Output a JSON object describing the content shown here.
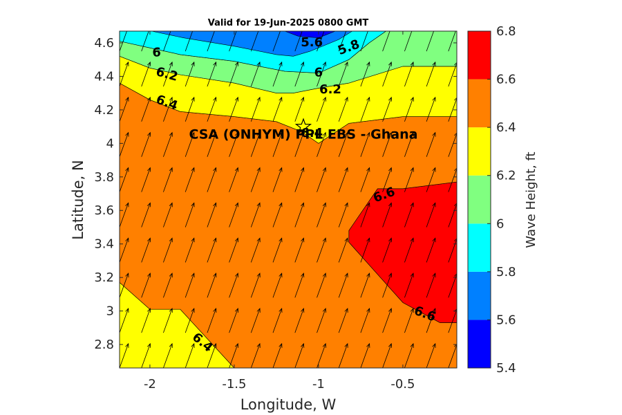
{
  "chart_data": {
    "type": "heatmap",
    "title": "Valid for 19-Jun-2025 0800 GMT",
    "xlabel": "Longitude, W",
    "ylabel": "Latitude, N",
    "colorbar_label": "Wave Height, ft",
    "xlim": [
      -2.18,
      -0.18
    ],
    "ylim": [
      2.66,
      4.67
    ],
    "xticks": [
      -2,
      -1.5,
      -1,
      -0.5
    ],
    "xtick_labels": [
      "-2",
      "-1.5",
      "-1",
      "-0.5"
    ],
    "yticks": [
      2.8,
      3,
      3.2,
      3.4,
      3.6,
      3.8,
      4,
      4.2,
      4.4,
      4.6
    ],
    "ytick_labels": [
      "2.8",
      "3",
      "3.2",
      "3.4",
      "3.6",
      "3.8",
      "4",
      "4.2",
      "4.4",
      "4.6"
    ],
    "levels": [
      5.4,
      5.6,
      5.8,
      6,
      6.2,
      6.4,
      6.6,
      6.8
    ],
    "level_labels": [
      "5.4",
      "5.6",
      "5.8",
      "6",
      "6.2",
      "6.4",
      "6.6",
      "6.8"
    ],
    "level_colors": [
      "#0000ff",
      "#0080ff",
      "#00ffff",
      "#80ff80",
      "#ffff00",
      "#ff8000",
      "#ff0000"
    ],
    "regions": [
      {
        "level": "6.2-6.4",
        "points": [
          [
            -2.18,
            2.66
          ],
          [
            -2.18,
            3.17
          ],
          [
            -2,
            3.01
          ],
          [
            -1.82,
            3.01
          ],
          [
            -1.5,
            2.66
          ]
        ]
      },
      {
        "level": "6.6-6.8",
        "points": [
          [
            -0.18,
            3.77
          ],
          [
            -0.5,
            3.73
          ],
          [
            -0.65,
            3.73
          ],
          [
            -0.82,
            3.48
          ],
          [
            -0.82,
            3.41
          ],
          [
            -0.5,
            3.05
          ],
          [
            -0.28,
            2.93
          ],
          [
            -0.18,
            2.93
          ]
        ]
      },
      {
        "level": "6.4-6.6",
        "points": [
          [
            -2.18,
            3.17
          ],
          [
            -2,
            3.01
          ],
          [
            -1.82,
            3.01
          ],
          [
            -1.5,
            2.66
          ],
          [
            -0.18,
            2.66
          ],
          [
            -0.18,
            2.93
          ],
          [
            -0.28,
            2.93
          ],
          [
            -0.5,
            3.05
          ],
          [
            -0.82,
            3.41
          ],
          [
            -0.82,
            3.48
          ],
          [
            -0.65,
            3.73
          ],
          [
            -0.5,
            3.73
          ],
          [
            -0.18,
            3.77
          ],
          [
            -0.18,
            4.16
          ],
          [
            -0.5,
            4.16
          ],
          [
            -0.82,
            4.12
          ],
          [
            -1,
            4
          ],
          [
            -1.1,
            4.07
          ],
          [
            -1.25,
            4.13
          ],
          [
            -1.5,
            4.16
          ],
          [
            -1.82,
            4.19
          ],
          [
            -2,
            4.26
          ],
          [
            -2.18,
            4.36
          ]
        ]
      },
      {
        "level": "6.2-6.4",
        "points": [
          [
            -2.18,
            4.36
          ],
          [
            -2,
            4.26
          ],
          [
            -1.82,
            4.19
          ],
          [
            -1.5,
            4.16
          ],
          [
            -1.25,
            4.13
          ],
          [
            -1.1,
            4.07
          ],
          [
            -1,
            4
          ],
          [
            -0.82,
            4.12
          ],
          [
            -0.5,
            4.16
          ],
          [
            -0.18,
            4.16
          ],
          [
            -0.18,
            4.46
          ],
          [
            -0.5,
            4.46
          ],
          [
            -0.82,
            4.36
          ],
          [
            -1,
            4.33
          ],
          [
            -1.15,
            4.3
          ],
          [
            -1.25,
            4.3
          ],
          [
            -1.5,
            4.36
          ],
          [
            -1.82,
            4.41
          ],
          [
            -2,
            4.45
          ],
          [
            -2.18,
            4.52
          ]
        ]
      },
      {
        "level": "6.0-6.2",
        "points": [
          [
            -2.18,
            4.52
          ],
          [
            -2,
            4.45
          ],
          [
            -1.82,
            4.41
          ],
          [
            -1.5,
            4.36
          ],
          [
            -1.25,
            4.3
          ],
          [
            -1.15,
            4.3
          ],
          [
            -1,
            4.33
          ],
          [
            -0.82,
            4.36
          ],
          [
            -0.5,
            4.46
          ],
          [
            -0.18,
            4.46
          ],
          [
            -0.18,
            4.67
          ],
          [
            -0.6,
            4.67
          ],
          [
            -0.7,
            4.6
          ],
          [
            -0.82,
            4.5
          ],
          [
            -1,
            4.42
          ],
          [
            -1.2,
            4.43
          ],
          [
            -1.5,
            4.49
          ],
          [
            -1.82,
            4.53
          ],
          [
            -2,
            4.57
          ],
          [
            -2.18,
            4.61
          ]
        ]
      },
      {
        "level": "5.8-6.0",
        "points": [
          [
            -2.18,
            4.61
          ],
          [
            -2,
            4.57
          ],
          [
            -1.82,
            4.53
          ],
          [
            -1.5,
            4.49
          ],
          [
            -1.2,
            4.43
          ],
          [
            -1,
            4.42
          ],
          [
            -0.82,
            4.5
          ],
          [
            -0.7,
            4.6
          ],
          [
            -0.6,
            4.67
          ],
          [
            -2.18,
            4.67
          ]
        ]
      },
      {
        "level": "5.6-5.8",
        "points": [
          [
            -1.99,
            4.67
          ],
          [
            -1.8,
            4.63
          ],
          [
            -1.5,
            4.58
          ],
          [
            -1.25,
            4.53
          ],
          [
            -1.15,
            4.52
          ],
          [
            -1.05,
            4.55
          ],
          [
            -0.88,
            4.62
          ],
          [
            -0.8,
            4.67
          ]
        ]
      },
      {
        "level": "5.4-5.6",
        "points": [
          [
            -1.2,
            4.67
          ],
          [
            -1.12,
            4.64
          ],
          [
            -1.0,
            4.63
          ],
          [
            -0.9,
            4.67
          ]
        ]
      }
    ],
    "contour_labels": [
      {
        "text": "5.6",
        "x": -1.04,
        "y": 4.6,
        "angle": 0
      },
      {
        "text": "5.8",
        "x": -0.82,
        "y": 4.57,
        "angle": -20
      },
      {
        "text": "6",
        "x": -1.96,
        "y": 4.54,
        "angle": 0
      },
      {
        "text": "6",
        "x": -1.0,
        "y": 4.42,
        "angle": 0
      },
      {
        "text": "6.2",
        "x": -1.9,
        "y": 4.41,
        "angle": 15
      },
      {
        "text": "6.2",
        "x": -0.93,
        "y": 4.32,
        "angle": 0
      },
      {
        "text": "6.4",
        "x": -1.9,
        "y": 4.24,
        "angle": 20
      },
      {
        "text": "6.4",
        "x": -1.04,
        "y": 4.06,
        "angle": 0
      },
      {
        "text": "6.6",
        "x": -0.61,
        "y": 3.69,
        "angle": -20
      },
      {
        "text": "6.6",
        "x": -0.37,
        "y": 2.98,
        "angle": 20
      },
      {
        "text": "6.4",
        "x": -1.69,
        "y": 2.81,
        "angle": 40
      }
    ],
    "site": {
      "label": "CSA (ONHYM) PPL EBS  - Ghana",
      "lon": -1.09,
      "lat": 4.1
    },
    "vectors": {
      "lon_step": 0.13,
      "lat_step": 0.21,
      "direction": "north-northeast",
      "dx": 0.052,
      "dy": 0.145
    },
    "grid": false,
    "legend": "colorbar-right"
  }
}
